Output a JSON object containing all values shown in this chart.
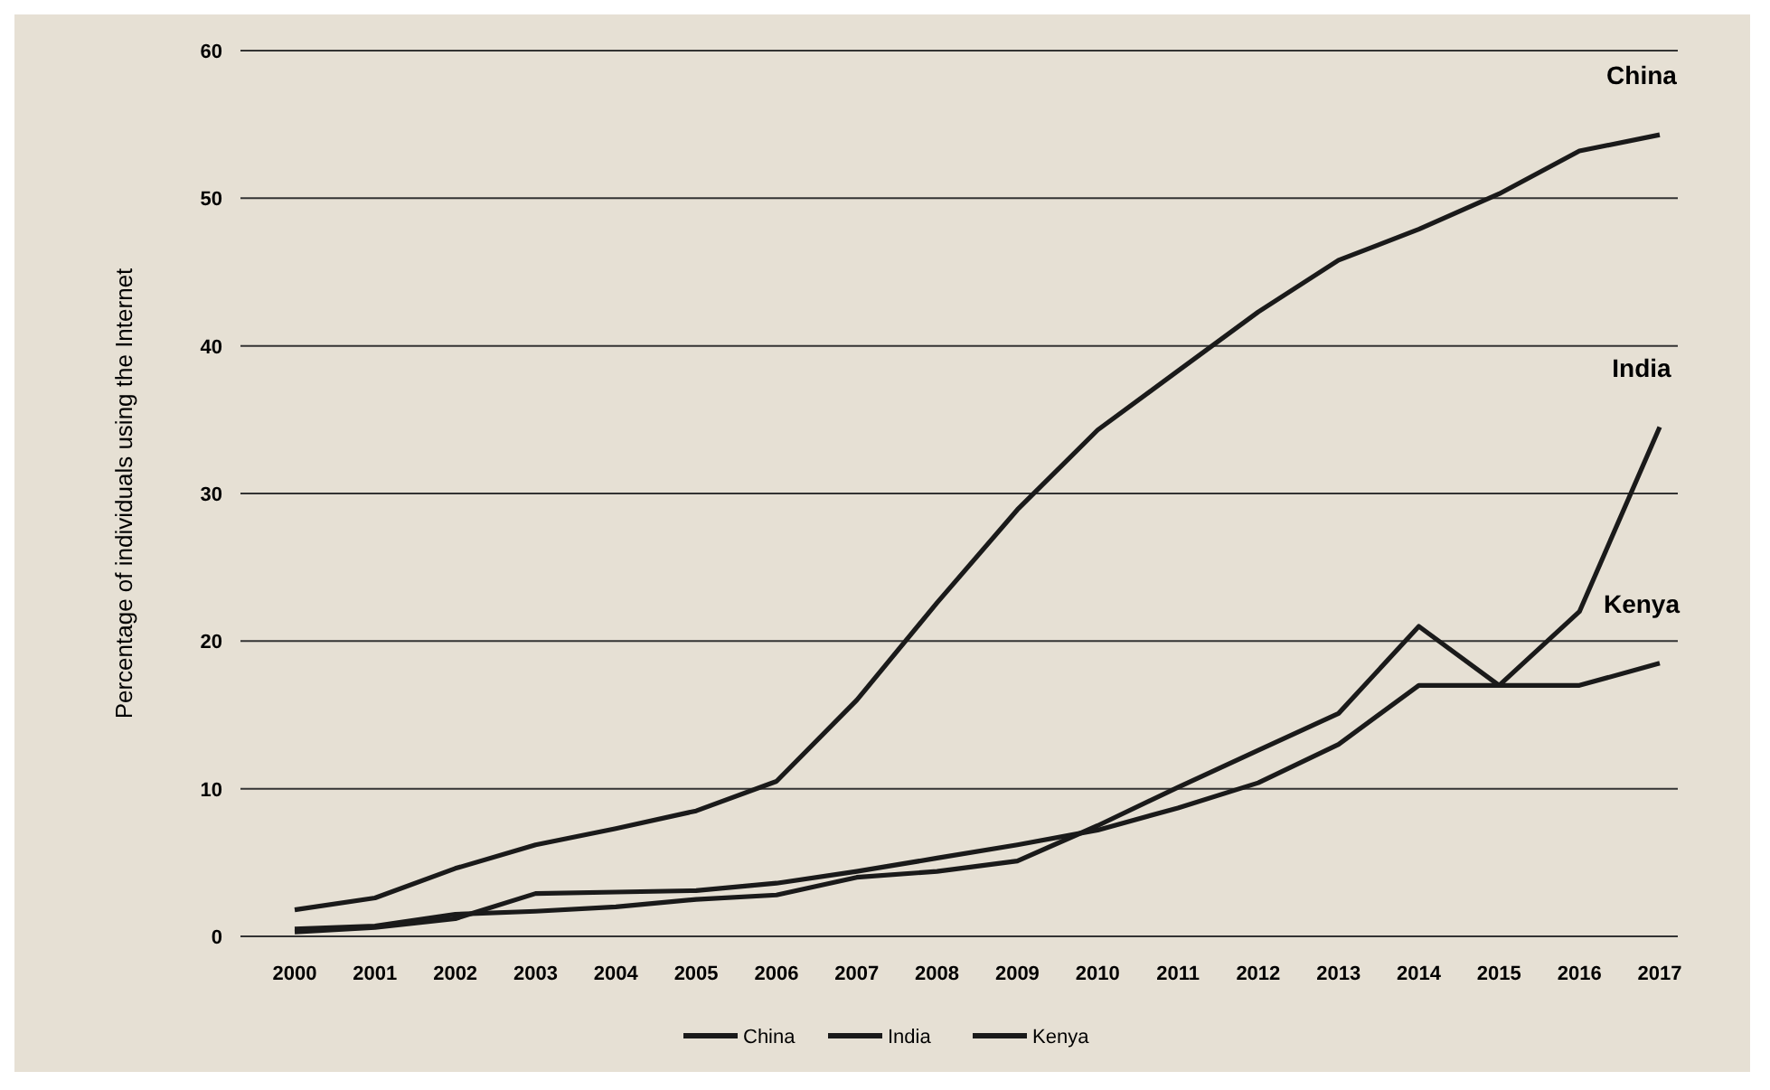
{
  "chart_data": {
    "type": "line",
    "ylabel": "Percentage of individuals using the Internet",
    "categories": [
      "2000",
      "2001",
      "2002",
      "2003",
      "2004",
      "2005",
      "2006",
      "2007",
      "2008",
      "2009",
      "2010",
      "2011",
      "2012",
      "2013",
      "2014",
      "2015",
      "2016",
      "2017"
    ],
    "series": [
      {
        "name": "China",
        "color": "#1a1a1a",
        "values": [
          1.8,
          2.6,
          4.6,
          6.2,
          7.3,
          8.5,
          10.5,
          16,
          22.6,
          28.9,
          34.3,
          38.3,
          42.3,
          45.8,
          47.9,
          50.3,
          53.2,
          54.3
        ]
      },
      {
        "name": "India",
        "color": "#1a1a1a",
        "values": [
          0.5,
          0.7,
          1.5,
          1.7,
          2,
          2.5,
          2.8,
          4,
          4.4,
          5.1,
          7.5,
          10.1,
          12.6,
          15.1,
          21,
          17,
          22,
          34.5
        ]
      },
      {
        "name": "Kenya",
        "color": "#1a1a1a",
        "values": [
          0.3,
          0.6,
          1.2,
          2.9,
          3,
          3.1,
          3.6,
          4.4,
          5.3,
          6.2,
          7.2,
          8.7,
          10.4,
          13,
          17,
          17,
          17,
          18.5
        ]
      }
    ],
    "ylim": [
      0,
      60
    ],
    "yticks": [
      0,
      10,
      20,
      30,
      40,
      50,
      60
    ],
    "grid": "y",
    "legend": "bottom",
    "line_style": "solid",
    "marker": "none"
  }
}
